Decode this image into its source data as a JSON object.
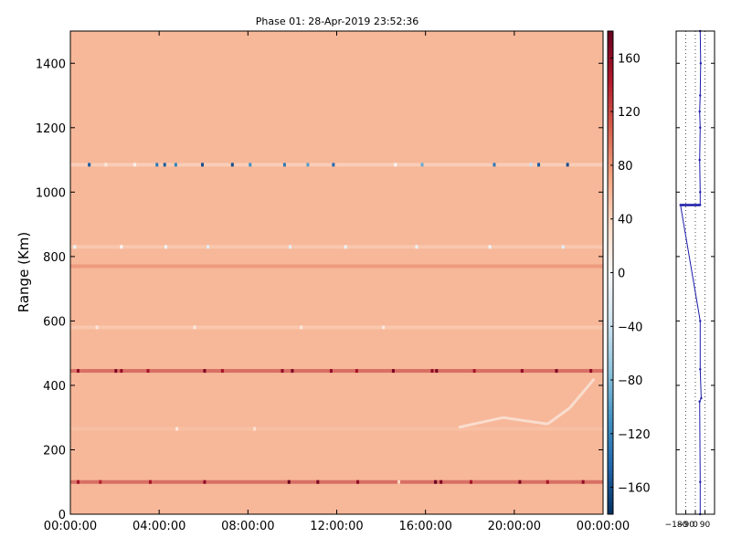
{
  "chart_data": [
    {
      "type": "heatmap",
      "title": "Phase 01: 28-Apr-2019 23:52:36",
      "xlabel": "",
      "ylabel": "Range (Km)",
      "xlim": [
        "00:00:00",
        "24:00:00"
      ],
      "ylim": [
        0,
        1500
      ],
      "x_ticks": [
        "00:00:00",
        "04:00:00",
        "08:00:00",
        "12:00:00",
        "16:00:00",
        "20:00:00",
        "00:00:00"
      ],
      "y_ticks": [
        0,
        200,
        400,
        600,
        800,
        1000,
        1200,
        1400
      ],
      "base_value": 60,
      "colormap": {
        "name": "RdBu_r",
        "range": [
          -180,
          180
        ],
        "ticks": [
          -160,
          -120,
          -80,
          -40,
          0,
          40,
          80,
          120,
          160
        ],
        "colors": [
          "#053061",
          "#2166ac",
          "#4393c3",
          "#92c5de",
          "#d1e5f0",
          "#f7f7f7",
          "#fddbc7",
          "#f4a582",
          "#d6604d",
          "#b2182b",
          "#67001f"
        ]
      },
      "bands": [
        {
          "range": 1085,
          "dominant_value": 30,
          "outliers": [
            {
              "time_h": 0.85,
              "value": -150
            },
            {
              "time_h": 1.6,
              "value": 20
            },
            {
              "time_h": 2.9,
              "value": 10
            },
            {
              "time_h": 3.9,
              "value": -130
            },
            {
              "time_h": 4.25,
              "value": -150
            },
            {
              "time_h": 4.75,
              "value": -120
            },
            {
              "time_h": 5.95,
              "value": -160
            },
            {
              "time_h": 7.3,
              "value": -160
            },
            {
              "time_h": 8.1,
              "value": -110
            },
            {
              "time_h": 9.65,
              "value": -130
            },
            {
              "time_h": 10.7,
              "value": -100
            },
            {
              "time_h": 11.85,
              "value": -140
            },
            {
              "time_h": 14.65,
              "value": 0
            },
            {
              "time_h": 15.85,
              "value": -90
            },
            {
              "time_h": 19.1,
              "value": -130
            },
            {
              "time_h": 20.75,
              "value": -40
            },
            {
              "time_h": 21.1,
              "value": -150
            },
            {
              "time_h": 22.4,
              "value": -160
            }
          ]
        },
        {
          "range": 830,
          "dominant_value": 40,
          "outliers": [
            {
              "time_h": 0.2,
              "value": -10
            },
            {
              "time_h": 2.3,
              "value": 0
            },
            {
              "time_h": 4.3,
              "value": -10
            },
            {
              "time_h": 6.2,
              "value": -20
            },
            {
              "time_h": 9.9,
              "value": -20
            },
            {
              "time_h": 12.4,
              "value": -10
            },
            {
              "time_h": 15.6,
              "value": -10
            },
            {
              "time_h": 18.9,
              "value": -10
            },
            {
              "time_h": 22.2,
              "value": -20
            }
          ]
        },
        {
          "range": 770,
          "dominant_value": 90,
          "outliers": []
        },
        {
          "range": 580,
          "dominant_value": 40,
          "outliers": [
            {
              "time_h": 1.2,
              "value": 20
            },
            {
              "time_h": 5.6,
              "value": 20
            },
            {
              "time_h": 10.4,
              "value": 20
            },
            {
              "time_h": 14.1,
              "value": 20
            }
          ]
        },
        {
          "range": 445,
          "dominant_value": 130,
          "outliers": [
            {
              "time_h": 0.35,
              "value": 160
            },
            {
              "time_h": 2.05,
              "value": 170
            },
            {
              "time_h": 2.3,
              "value": 160
            },
            {
              "time_h": 3.5,
              "value": 150
            },
            {
              "time_h": 6.05,
              "value": 170
            },
            {
              "time_h": 6.85,
              "value": 150
            },
            {
              "time_h": 9.55,
              "value": 160
            },
            {
              "time_h": 10.0,
              "value": 170
            },
            {
              "time_h": 11.75,
              "value": 160
            },
            {
              "time_h": 12.9,
              "value": 150
            },
            {
              "time_h": 14.55,
              "value": 170
            },
            {
              "time_h": 16.3,
              "value": 160
            },
            {
              "time_h": 16.5,
              "value": 170
            },
            {
              "time_h": 18.2,
              "value": 150
            },
            {
              "time_h": 20.35,
              "value": 160
            },
            {
              "time_h": 21.9,
              "value": 170
            },
            {
              "time_h": 23.45,
              "value": 160
            }
          ]
        },
        {
          "range": 265,
          "dominant_value": 50,
          "outliers": [
            {
              "time_h": 4.8,
              "value": 20
            },
            {
              "time_h": 8.3,
              "value": 30
            }
          ]
        },
        {
          "range": 100,
          "dominant_value": 130,
          "outliers": [
            {
              "time_h": 0.35,
              "value": 150
            },
            {
              "time_h": 1.35,
              "value": 140
            },
            {
              "time_h": 3.6,
              "value": 150
            },
            {
              "time_h": 6.05,
              "value": 160
            },
            {
              "time_h": 9.85,
              "value": 180
            },
            {
              "time_h": 11.15,
              "value": 170
            },
            {
              "time_h": 12.95,
              "value": 160
            },
            {
              "time_h": 14.8,
              "value": 40
            },
            {
              "time_h": 16.45,
              "value": 180
            },
            {
              "time_h": 16.7,
              "value": 170
            },
            {
              "time_h": 18.05,
              "value": 150
            },
            {
              "time_h": 20.25,
              "value": 170
            },
            {
              "time_h": 21.5,
              "value": 150
            },
            {
              "time_h": 23.1,
              "value": 160
            }
          ]
        }
      ],
      "faint_trace": [
        {
          "time_h": 17.5,
          "range": 270
        },
        {
          "time_h": 19.5,
          "range": 300
        },
        {
          "time_h": 21.5,
          "range": 280
        },
        {
          "time_h": 22.5,
          "range": 330
        },
        {
          "time_h": 23.6,
          "range": 420
        }
      ]
    },
    {
      "type": "line",
      "title": "",
      "xlim": [
        -180,
        180
      ],
      "ylim": [
        0,
        1500
      ],
      "x_ticks": [
        -180,
        -90,
        0,
        90
      ],
      "x_tick_labels": [
        "-180",
        "-90",
        "0",
        "90"
      ],
      "y_ticks": [
        0,
        200,
        400,
        600,
        800,
        1000,
        1200,
        1400
      ],
      "grid_x": true,
      "series": [
        {
          "color": "#1a1aaa",
          "x": [
            45,
            45,
            40,
            55,
            45,
            45,
            -140,
            45,
            45,
            40,
            45,
            40,
            45,
            50,
            45
          ],
          "y": [
            0,
            100,
            350,
            360,
            450,
            600,
            960,
            960,
            1000,
            1100,
            1200,
            1250,
            1300,
            1400,
            1500
          ]
        }
      ]
    }
  ]
}
